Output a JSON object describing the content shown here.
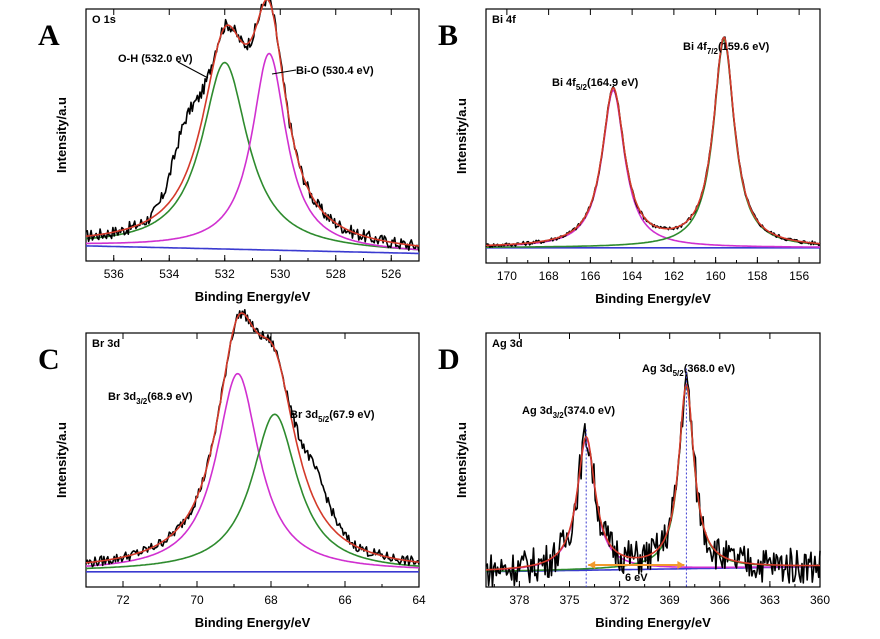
{
  "chart_data": [
    {
      "panel": "A",
      "type": "line",
      "title": "O 1s",
      "xlabel": "Binding Energy/eV",
      "ylabel": "Intensity/a.u",
      "xlim": [
        537,
        525
      ],
      "xticks": [
        536,
        534,
        532,
        530,
        528,
        526
      ],
      "annotations": [
        {
          "text": "O-H (532.0 eV)",
          "peak": 532.0
        },
        {
          "text": "Bi-O (530.4 eV)",
          "peak": 530.4
        }
      ],
      "series": [
        {
          "role": "raw",
          "color": "#000000",
          "values_desc": "experimental"
        },
        {
          "role": "envelope",
          "color": "#d43a2a"
        },
        {
          "role": "component",
          "color": "#2e8b2e",
          "peak": 532.0,
          "height": 0.74,
          "width": 1.0
        },
        {
          "role": "component",
          "color": "#d030d0",
          "peak": 530.4,
          "height": 0.78,
          "width": 0.75
        },
        {
          "role": "background",
          "color": "#3a3ad0"
        }
      ]
    },
    {
      "panel": "B",
      "type": "line",
      "title": "Bi 4f",
      "xlabel": "Binding Energy/eV",
      "ylabel": "Intensity/a.u",
      "xlim": [
        171,
        155
      ],
      "xticks": [
        170,
        168,
        166,
        164,
        162,
        160,
        158,
        156
      ],
      "annotations": [
        {
          "text": "Bi 4f",
          "sub": "5/2",
          "tail": "(164.9 eV)",
          "peak": 164.9
        },
        {
          "text": "Bi 4f",
          "sub": "7/2",
          "tail": "(159.6 eV)",
          "peak": 159.6
        }
      ],
      "series": [
        {
          "role": "raw",
          "color": "#000000"
        },
        {
          "role": "envelope",
          "color": "#d43a2a"
        },
        {
          "role": "component",
          "color": "#d030d0",
          "peak": 164.9,
          "height": 0.62,
          "width": 0.65
        },
        {
          "role": "component",
          "color": "#2e8b2e",
          "peak": 159.6,
          "height": 0.82,
          "width": 0.6
        },
        {
          "role": "background",
          "color": "#3a3ad0"
        }
      ]
    },
    {
      "panel": "C",
      "type": "line",
      "title": "Br 3d",
      "xlabel": "Binding Energy/eV",
      "ylabel": "Intensity/a.u",
      "xlim": [
        73,
        64
      ],
      "xticks": [
        72,
        70,
        68,
        66,
        64
      ],
      "annotations": [
        {
          "text": "Br 3d",
          "sub": "3/2",
          "tail": "(68.9 eV)",
          "peak": 68.9
        },
        {
          "text": "Br 3d",
          "sub": "5/2",
          "tail": "(67.9 eV)",
          "peak": 67.9
        }
      ],
      "series": [
        {
          "role": "raw",
          "color": "#000000"
        },
        {
          "role": "envelope",
          "color": "#d43a2a"
        },
        {
          "role": "component",
          "color": "#d030d0",
          "peak": 68.9,
          "height": 0.78,
          "width": 0.7
        },
        {
          "role": "component",
          "color": "#2e8b2e",
          "peak": 67.9,
          "height": 0.62,
          "width": 0.75
        },
        {
          "role": "background",
          "color": "#3a3ad0"
        }
      ]
    },
    {
      "panel": "D",
      "type": "line",
      "title": "Ag 3d",
      "xlabel": "Binding Energy/eV",
      "ylabel": "Intensity/a.u",
      "xlim": [
        380,
        360
      ],
      "xticks": [
        378,
        375,
        372,
        369,
        366,
        363,
        360
      ],
      "annotations": [
        {
          "text": "Ag 3d",
          "sub": "3/2",
          "tail": "(374.0 eV)",
          "peak": 374.0
        },
        {
          "text": "Ag 3d",
          "sub": "5/2",
          "tail": "(368.0 eV)",
          "peak": 368.0
        },
        {
          "text": "6 eV",
          "kind": "splitting"
        }
      ],
      "series": [
        {
          "role": "raw",
          "color": "#000000"
        },
        {
          "role": "envelope",
          "color": "#d43a2a"
        },
        {
          "role": "component",
          "color": "#d030d0",
          "peak": 374.0,
          "height": 0.52,
          "width": 0.65
        },
        {
          "role": "component",
          "color": "#2e8b2e",
          "peak": 368.0,
          "height": 0.72,
          "width": 0.55
        },
        {
          "role": "background",
          "color": "#3a3ad0"
        }
      ]
    }
  ]
}
